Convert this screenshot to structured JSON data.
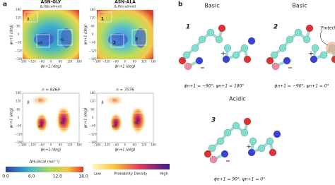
{
  "panel_a": {
    "label": "a",
    "plots": [
      {
        "title": "ASN-GLY",
        "subtitle": "ΔᵤH(kcal/mol)",
        "regions": [
          "β",
          "αR",
          "αL"
        ]
      },
      {
        "title": "ASN-ALA",
        "subtitle": "ΔᵤH(kcal/mol)",
        "regions": [
          "1",
          "2",
          "3"
        ]
      },
      {
        "title": "n = 8269",
        "regions": [
          "β",
          "αR",
          "αL"
        ]
      },
      {
        "title": "n = 7076",
        "regions": [
          "β",
          "αR",
          "αL"
        ]
      }
    ],
    "x_label": "ϕn+1 (deg)",
    "y_label": "ψn+1 (deg)",
    "ticks": [
      "−180",
      "−120",
      "−60",
      "0",
      "60",
      "120",
      "180"
    ],
    "energy_bar": {
      "label": "ΔHᵤ(kcal mol⁻¹)",
      "ticks": [
        "0.0",
        "6.0",
        "12.0",
        "18.0"
      ]
    },
    "density_bar": {
      "label": "Probability Density",
      "low": "Low",
      "high": "High"
    }
  },
  "panel_b": {
    "label": "b",
    "structures": [
      {
        "title": "Basic",
        "number": "1",
        "caption": "ϕn+1 = −90°, ψn+1 = 180°"
      },
      {
        "title": "Basic",
        "number": "2",
        "caption": "ϕn+1 = −90°, ψn+1 = 0°",
        "note": "Protection"
      },
      {
        "title": "Acidic",
        "number": "3",
        "caption": "ϕn+1 = 90°, ψn+1 = 0°"
      }
    ]
  }
}
